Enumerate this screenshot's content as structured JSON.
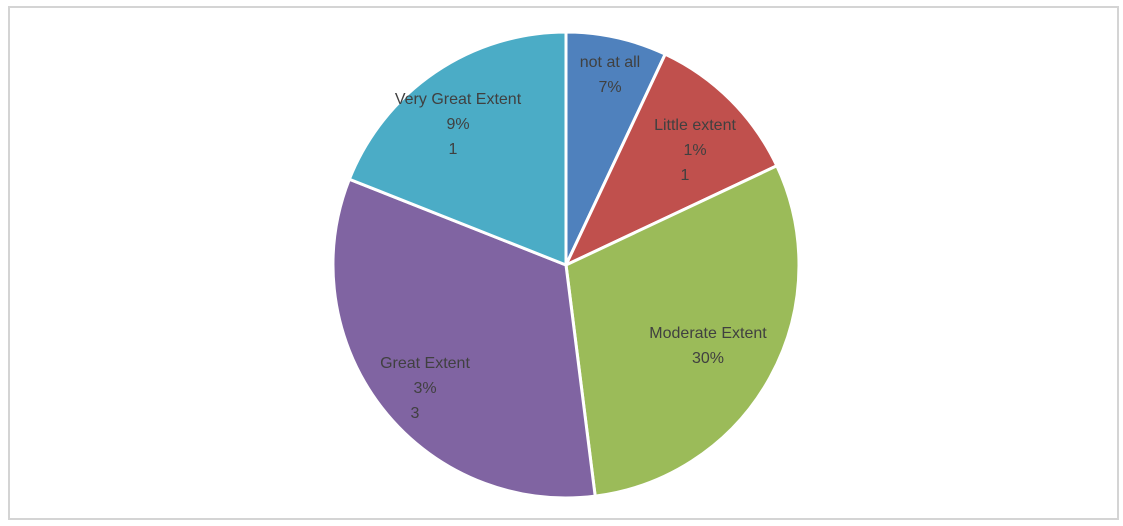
{
  "chart_data": {
    "type": "pie",
    "title": "",
    "start_angle_deg": 0,
    "direction": "clockwise",
    "slices": [
      {
        "name": "not at all",
        "value": 7,
        "label_lines": [
          "not at all",
          "7%"
        ],
        "color": "#4f81bd"
      },
      {
        "name": "Little extent",
        "value": 11,
        "label_lines": [
          "Little extent",
          "1%",
          "1"
        ],
        "color": "#c0504d"
      },
      {
        "name": "Moderate Extent",
        "value": 30,
        "label_lines": [
          "Moderate Extent",
          "30%"
        ],
        "color": "#9bbb59"
      },
      {
        "name": "Great Extent",
        "value": 33,
        "label_lines": [
          "Great Extent",
          "3%",
          "3"
        ],
        "color": "#8064a2"
      },
      {
        "name": "Very Great Extent",
        "value": 19,
        "label_lines": [
          "Very Great Extent",
          "9%",
          "1"
        ],
        "color": "#4bacc6"
      }
    ]
  }
}
